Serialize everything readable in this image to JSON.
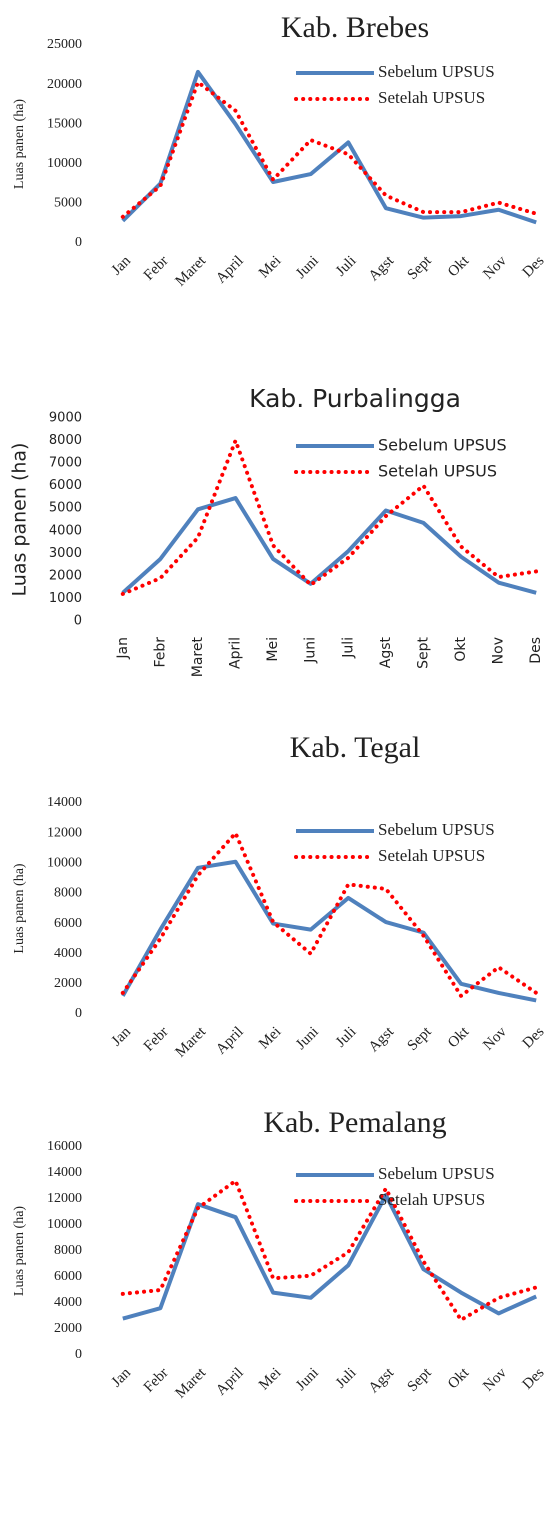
{
  "chart_data": [
    {
      "type": "line",
      "title": "Kab. Brebes",
      "y_label": "Luas panen (ha)",
      "categories": [
        "Jan",
        "Febr",
        "Maret",
        "April",
        "Mei",
        "Juni",
        "Juli",
        "Agst",
        "Sept",
        "Okt",
        "Nov",
        "Des"
      ],
      "series": [
        {
          "name": "Sebelum UPSUS",
          "color": "#4f81bd",
          "values": [
            2800,
            7500,
            21600,
            15000,
            7700,
            8700,
            12700,
            4400,
            3200,
            3400,
            4200,
            2600
          ]
        },
        {
          "name": "Setelah UPSUS",
          "color": "#ff0000",
          "values": [
            3300,
            7200,
            20300,
            16700,
            8000,
            13000,
            11200,
            6000,
            3900,
            3900,
            5100,
            3700
          ]
        }
      ],
      "ylim": [
        0,
        25000
      ],
      "yticks": [
        0,
        5000,
        10000,
        15000,
        20000,
        25000
      ],
      "grid": false,
      "legend": "upper right"
    },
    {
      "type": "line",
      "title": "Kab. Purbalingga",
      "y_label": "Luas panen (ha)",
      "categories": [
        "Jan",
        "Febr",
        "Maret",
        "April",
        "Mei",
        "Juni",
        "Juli",
        "Agst",
        "Sept",
        "Okt",
        "Nov",
        "Des"
      ],
      "series": [
        {
          "name": "Sebelum UPSUS",
          "color": "#4f81bd",
          "values": [
            1250,
            2750,
            4950,
            5450,
            2750,
            1650,
            3100,
            4900,
            4350,
            2850,
            1700,
            1250
          ]
        },
        {
          "name": "Setelah UPSUS",
          "color": "#ff0000",
          "values": [
            1200,
            1900,
            3700,
            8000,
            3350,
            1600,
            2800,
            4650,
            6000,
            3300,
            1950,
            2200
          ]
        }
      ],
      "ylim": [
        0,
        9000
      ],
      "yticks": [
        0,
        1000,
        2000,
        3000,
        4000,
        5000,
        6000,
        7000,
        8000,
        9000
      ],
      "grid": false,
      "legend": "upper right"
    },
    {
      "type": "line",
      "title": "Kab. Tegal",
      "y_label": "Luas panen (ha)",
      "categories": [
        "Jan",
        "Febr",
        "Maret",
        "April",
        "Mei",
        "Juni",
        "Juli",
        "Agst",
        "Sept",
        "Okt",
        "Nov",
        "Des"
      ],
      "series": [
        {
          "name": "Sebelum UPSUS",
          "color": "#4f81bd",
          "values": [
            1200,
            5600,
            9700,
            10100,
            6000,
            5600,
            7700,
            6100,
            5400,
            2000,
            1400,
            900
          ]
        },
        {
          "name": "Setelah UPSUS",
          "color": "#ff0000",
          "values": [
            1400,
            5000,
            9200,
            12000,
            6100,
            4000,
            8600,
            8300,
            5200,
            1200,
            3100,
            1400
          ]
        }
      ],
      "ylim": [
        0,
        14000
      ],
      "yticks": [
        0,
        2000,
        4000,
        6000,
        8000,
        10000,
        12000,
        14000
      ],
      "grid": false,
      "legend": "upper right"
    },
    {
      "type": "line",
      "title": "Kab. Pemalang",
      "y_label": "Luas panen (ha)",
      "categories": [
        "Jan",
        "Febr",
        "Maret",
        "April",
        "Mei",
        "Juni",
        "Juli",
        "Agst",
        "Sept",
        "Okt",
        "Nov",
        "Des"
      ],
      "series": [
        {
          "name": "Sebelum UPSUS",
          "color": "#4f81bd",
          "values": [
            2800,
            3600,
            11600,
            10600,
            4800,
            4400,
            6900,
            12300,
            6600,
            4800,
            3200,
            4500
          ]
        },
        {
          "name": "Setelah UPSUS",
          "color": "#ff0000",
          "values": [
            4700,
            5000,
            11300,
            13400,
            5900,
            6100,
            7900,
            12800,
            7200,
            2700,
            4400,
            5200
          ]
        }
      ],
      "ylim": [
        0,
        16000
      ],
      "yticks": [
        0,
        2000,
        4000,
        6000,
        8000,
        10000,
        12000,
        14000,
        16000
      ],
      "grid": false,
      "legend": "upper right"
    }
  ]
}
